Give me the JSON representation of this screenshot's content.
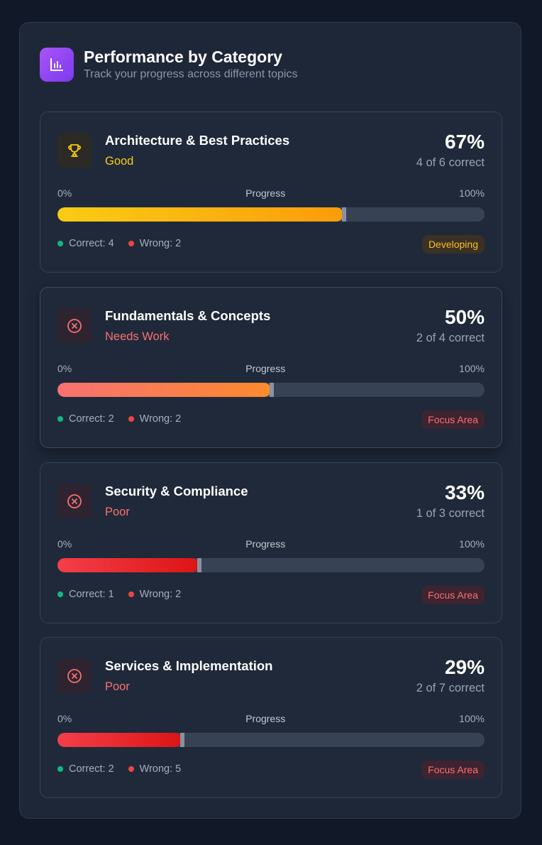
{
  "header": {
    "title": "Performance by Category",
    "subtitle": "Track your progress across different topics",
    "icon": "bar-chart-icon"
  },
  "scale": {
    "min_label": "0%",
    "mid_label": "Progress",
    "max_label": "100%"
  },
  "colors": {
    "gold": "#facc15",
    "red_status": "#f87171",
    "correct_dot": "#10b981",
    "wrong_dot": "#ef4444"
  },
  "categories": [
    {
      "name": "Architecture & Best Practices",
      "status": "Good",
      "percent": "67%",
      "progress": 0.67,
      "count": "4 of 6 correct",
      "correct": "Correct: 4",
      "wrong": "Wrong: 2",
      "badge": "Developing",
      "icon": "trophy-icon"
    },
    {
      "name": "Fundamentals & Concepts",
      "status": "Needs Work",
      "percent": "50%",
      "progress": 0.5,
      "count": "2 of 4 correct",
      "correct": "Correct: 2",
      "wrong": "Wrong: 2",
      "badge": "Focus Area",
      "icon": "x-circle-icon"
    },
    {
      "name": "Security & Compliance",
      "status": "Poor",
      "percent": "33%",
      "progress": 0.33,
      "count": "1 of 3 correct",
      "correct": "Correct: 1",
      "wrong": "Wrong: 2",
      "badge": "Focus Area",
      "icon": "x-circle-icon"
    },
    {
      "name": "Services & Implementation",
      "status": "Poor",
      "percent": "29%",
      "progress": 0.29,
      "count": "2 of 7 correct",
      "correct": "Correct: 2",
      "wrong": "Wrong: 5",
      "badge": "Focus Area",
      "icon": "x-circle-icon"
    }
  ]
}
